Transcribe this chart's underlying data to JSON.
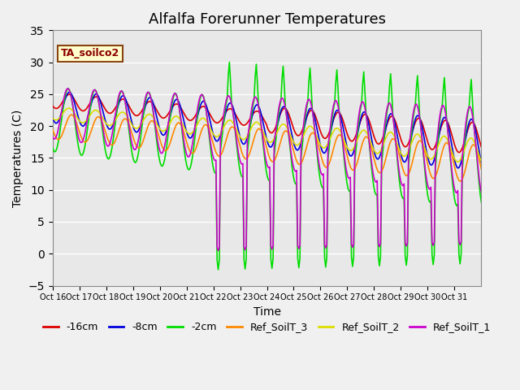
{
  "title": "Alfalfa Forerunner Temperatures",
  "xlabel": "Time",
  "ylabel": "Temperatures (C)",
  "ylim": [
    -5,
    35
  ],
  "yticks": [
    -5,
    0,
    5,
    10,
    15,
    20,
    25,
    30,
    35
  ],
  "xtick_labels": [
    "Oct 16",
    "Oct 17",
    "Oct 18",
    "Oct 19",
    "Oct 20",
    "Oct 21",
    "Oct 22",
    "Oct 23",
    "Oct 24",
    "Oct 25",
    "Oct 26",
    "Oct 27",
    "Oct 28",
    "Oct 29",
    "Oct 30",
    "Oct 31"
  ],
  "legend_label": "TA_soilco2",
  "series_labels": [
    "-16cm",
    "-8cm",
    "-2cm",
    "Ref_SoilT_3",
    "Ref_SoilT_2",
    "Ref_SoilT_1"
  ],
  "series_colors": [
    "#dd0000",
    "#0000dd",
    "#00dd00",
    "#ff8800",
    "#dddd00",
    "#cc00cc"
  ],
  "bg_color": "#e8e8e8",
  "grid_color": "#ffffff",
  "title_fontsize": 13,
  "axis_fontsize": 10,
  "legend_fontsize": 9
}
